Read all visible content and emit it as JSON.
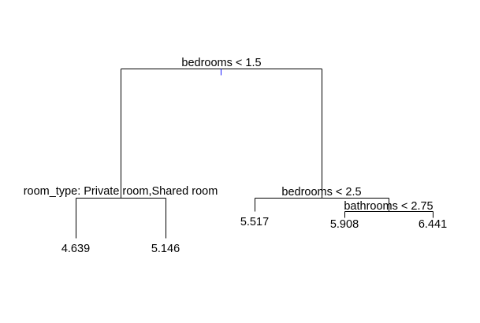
{
  "tree": {
    "root_split": "bedrooms < 1.5",
    "left_split": "room_type: Private room,Shared room",
    "right_split": "bedrooms < 2.5",
    "right_right_split": "bathrooms < 2.75",
    "leaves": {
      "left_left": "4.639",
      "left_right": "5.146",
      "right_left": "5.517",
      "right_right_left": "5.908",
      "right_right_right": "6.441"
    }
  }
}
